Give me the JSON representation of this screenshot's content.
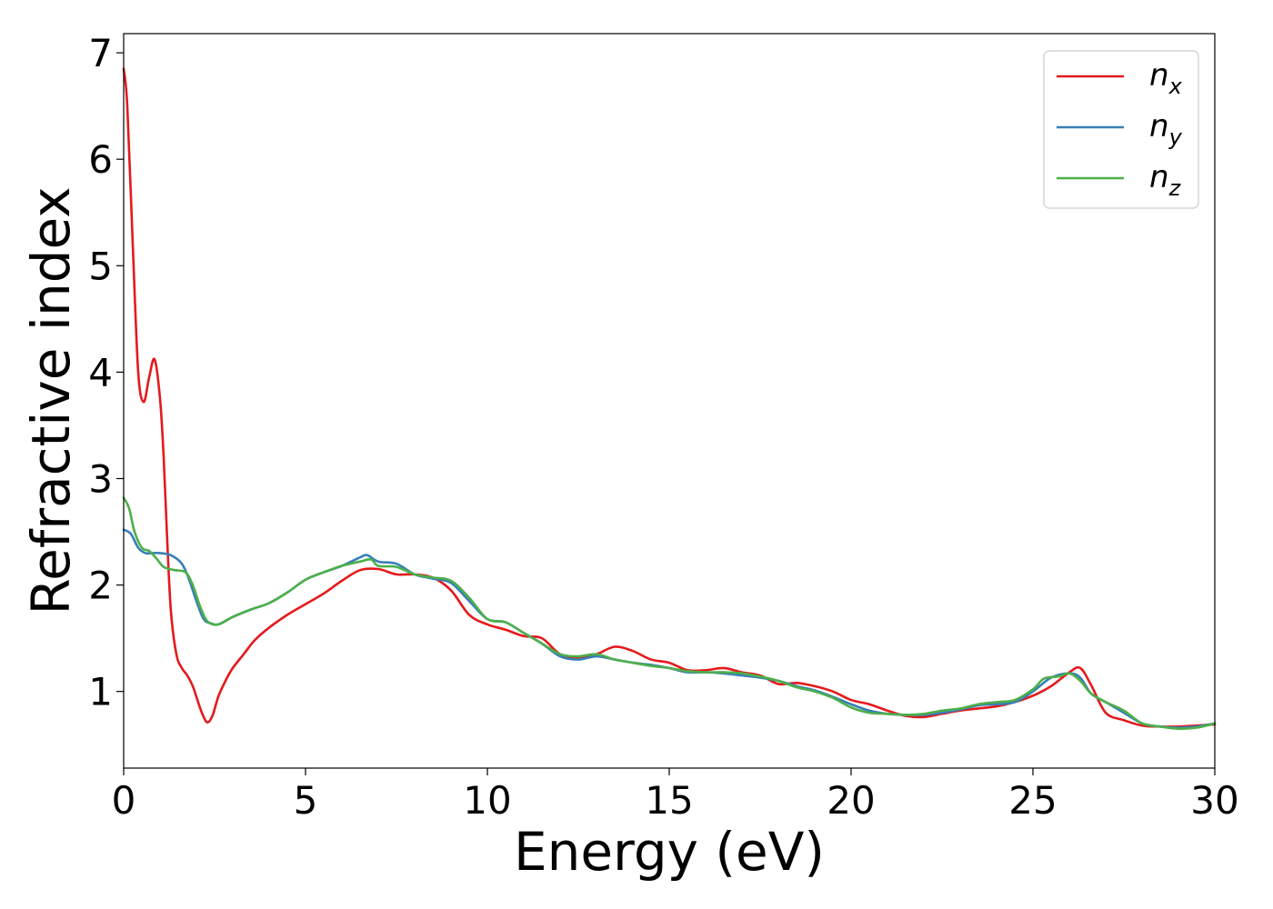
{
  "chart_data": {
    "type": "line",
    "xlabel": "Energy (eV)",
    "ylabel": "Refractive index",
    "xlim": [
      0,
      30
    ],
    "ylim": [
      0.28,
      7.18
    ],
    "xticks": [
      0,
      5,
      10,
      15,
      20,
      25,
      30
    ],
    "yticks": [
      1,
      2,
      3,
      4,
      5,
      6,
      7
    ],
    "grid": false,
    "legend_position": "top-right",
    "series": [
      {
        "name": "n_x",
        "label_base": "n",
        "label_sub": "x",
        "color": "#e41a1c",
        "x": [
          0,
          0.1,
          0.25,
          0.4,
          0.55,
          0.7,
          0.85,
          1.0,
          1.1,
          1.2,
          1.3,
          1.45,
          1.6,
          1.75,
          1.9,
          2.0,
          2.15,
          2.3,
          2.45,
          2.6,
          2.8,
          3.0,
          3.3,
          3.6,
          4.0,
          4.5,
          5.0,
          5.5,
          6.0,
          6.5,
          7.0,
          7.5,
          8.0,
          8.5,
          9.0,
          9.5,
          10.0,
          10.5,
          11.0,
          11.5,
          12.0,
          12.5,
          13.0,
          13.5,
          14.0,
          14.5,
          15.0,
          15.5,
          16.0,
          16.5,
          17.0,
          17.5,
          18.0,
          18.5,
          19.0,
          19.5,
          20.0,
          20.5,
          21.0,
          21.5,
          22.0,
          22.5,
          23.0,
          23.5,
          24.0,
          24.5,
          25.0,
          25.5,
          26.0,
          26.3,
          26.6,
          27.0,
          27.5,
          28.0,
          28.5,
          29.0,
          29.5,
          30.0
        ],
        "y": [
          6.85,
          6.5,
          5.2,
          4.0,
          3.72,
          3.95,
          4.12,
          3.75,
          3.2,
          2.4,
          1.75,
          1.35,
          1.22,
          1.15,
          1.05,
          0.95,
          0.8,
          0.71,
          0.78,
          0.95,
          1.1,
          1.22,
          1.35,
          1.48,
          1.6,
          1.72,
          1.82,
          1.92,
          2.04,
          2.14,
          2.15,
          2.1,
          2.1,
          2.07,
          1.95,
          1.72,
          1.63,
          1.58,
          1.52,
          1.5,
          1.35,
          1.32,
          1.35,
          1.42,
          1.38,
          1.3,
          1.27,
          1.2,
          1.2,
          1.22,
          1.18,
          1.15,
          1.07,
          1.08,
          1.05,
          1.0,
          0.92,
          0.88,
          0.82,
          0.77,
          0.76,
          0.79,
          0.82,
          0.84,
          0.86,
          0.9,
          0.96,
          1.05,
          1.18,
          1.22,
          1.06,
          0.8,
          0.73,
          0.68,
          0.67,
          0.67,
          0.68,
          0.69
        ]
      },
      {
        "name": "n_y",
        "label_base": "n",
        "label_sub": "y",
        "color": "#377eb8",
        "x": [
          0,
          0.2,
          0.4,
          0.6,
          0.8,
          1.0,
          1.3,
          1.6,
          1.8,
          2.0,
          2.2,
          2.4,
          2.6,
          3.0,
          3.5,
          4.0,
          4.5,
          5.0,
          5.5,
          6.0,
          6.5,
          6.7,
          7.0,
          7.5,
          8.0,
          8.5,
          9.0,
          9.5,
          10.0,
          10.5,
          11.0,
          11.5,
          12.0,
          12.5,
          13.0,
          13.5,
          14.0,
          14.5,
          15.0,
          15.5,
          16.0,
          16.5,
          17.0,
          17.5,
          18.0,
          18.5,
          19.0,
          19.5,
          20.0,
          20.5,
          21.0,
          21.5,
          22.0,
          22.5,
          23.0,
          23.5,
          24.0,
          24.5,
          25.0,
          25.5,
          26.0,
          26.3,
          26.6,
          27.0,
          27.5,
          28.0,
          28.5,
          29.0,
          29.5,
          30.0
        ],
        "y": [
          2.52,
          2.48,
          2.35,
          2.3,
          2.3,
          2.3,
          2.28,
          2.2,
          2.05,
          1.85,
          1.68,
          1.64,
          1.63,
          1.7,
          1.77,
          1.83,
          1.93,
          2.05,
          2.12,
          2.18,
          2.26,
          2.28,
          2.22,
          2.2,
          2.1,
          2.06,
          2.02,
          1.85,
          1.68,
          1.65,
          1.55,
          1.45,
          1.33,
          1.3,
          1.33,
          1.3,
          1.27,
          1.25,
          1.22,
          1.18,
          1.18,
          1.17,
          1.15,
          1.13,
          1.1,
          1.05,
          1.01,
          0.95,
          0.88,
          0.82,
          0.79,
          0.78,
          0.78,
          0.8,
          0.83,
          0.87,
          0.88,
          0.9,
          1.0,
          1.13,
          1.17,
          1.13,
          0.98,
          0.9,
          0.8,
          0.7,
          0.67,
          0.66,
          0.67,
          0.7
        ]
      },
      {
        "name": "n_z",
        "label_base": "n",
        "label_sub": "z",
        "color": "#4daf4a",
        "x": [
          0,
          0.15,
          0.3,
          0.5,
          0.7,
          0.9,
          1.1,
          1.4,
          1.7,
          1.9,
          2.1,
          2.3,
          2.6,
          3.0,
          3.5,
          4.0,
          4.5,
          5.0,
          5.5,
          6.0,
          6.5,
          6.8,
          7.0,
          7.5,
          8.0,
          8.5,
          9.0,
          9.5,
          10.0,
          10.5,
          11.0,
          11.5,
          12.0,
          12.5,
          13.0,
          13.5,
          14.0,
          14.5,
          15.0,
          15.5,
          16.0,
          16.5,
          17.0,
          17.5,
          18.0,
          18.5,
          19.0,
          19.5,
          20.0,
          20.5,
          21.0,
          21.5,
          22.0,
          22.5,
          23.0,
          23.5,
          24.0,
          24.5,
          25.0,
          25.3,
          25.7,
          26.0,
          26.3,
          26.6,
          27.0,
          27.5,
          28.0,
          28.5,
          29.0,
          29.5,
          30.0
        ],
        "y": [
          2.82,
          2.72,
          2.5,
          2.35,
          2.32,
          2.25,
          2.17,
          2.14,
          2.12,
          2.0,
          1.8,
          1.66,
          1.63,
          1.7,
          1.77,
          1.83,
          1.93,
          2.05,
          2.12,
          2.18,
          2.22,
          2.24,
          2.18,
          2.17,
          2.1,
          2.07,
          2.04,
          1.88,
          1.68,
          1.65,
          1.55,
          1.45,
          1.35,
          1.33,
          1.35,
          1.3,
          1.27,
          1.24,
          1.22,
          1.19,
          1.18,
          1.18,
          1.17,
          1.14,
          1.1,
          1.04,
          1.0,
          0.94,
          0.85,
          0.8,
          0.79,
          0.78,
          0.79,
          0.82,
          0.84,
          0.88,
          0.9,
          0.92,
          1.02,
          1.12,
          1.14,
          1.17,
          1.1,
          0.98,
          0.9,
          0.82,
          0.7,
          0.67,
          0.65,
          0.66,
          0.7
        ]
      }
    ]
  }
}
